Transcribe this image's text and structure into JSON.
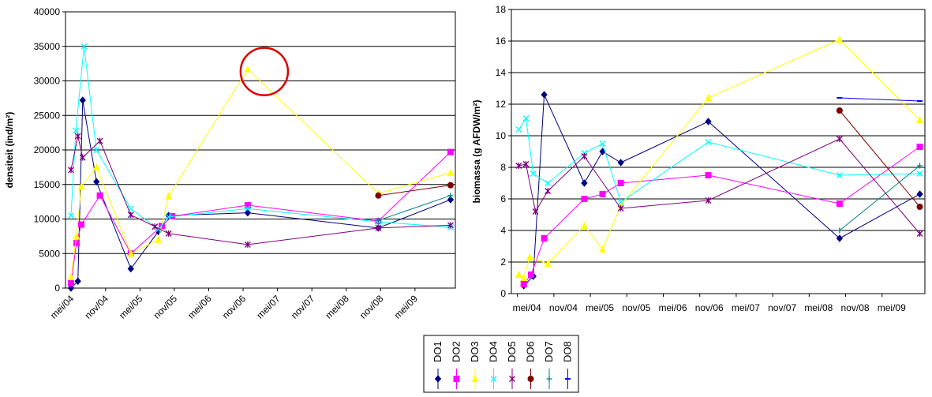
{
  "colors": {
    "DO1": "#000080",
    "DO2": "#FF00FF",
    "DO3": "#FFFF00",
    "DO4": "#00FFFF",
    "DO5": "#800080",
    "DO6": "#800000",
    "DO7": "#008080",
    "DO8": "#0000FF",
    "highlight": "#DD0000",
    "grid": "#000000"
  },
  "legend": [
    "DO1",
    "DO2",
    "DO3",
    "DO4",
    "DO5",
    "DO6",
    "DO7",
    "DO8"
  ],
  "chart_data": [
    {
      "type": "line",
      "ylabel": "densiteit (ind/m²)",
      "xlabel": "",
      "ylim": [
        0,
        40000
      ],
      "yticks": [
        "0",
        "5000",
        "10000",
        "15000",
        "20000",
        "25000",
        "30000",
        "35000",
        "40000"
      ],
      "xticks": [
        "mei/04",
        "nov/04",
        "mei/05",
        "nov/05",
        "mei/06",
        "nov/06",
        "mei/07",
        "nov/07",
        "mei/08",
        "nov/08",
        "mei/09"
      ],
      "xlim": [
        2004.25,
        2009.92
      ],
      "grid": "horizontal",
      "annotation": "red circle around DO3 peak at nov/06",
      "series": [
        {
          "name": "DO1",
          "marker": "diamond",
          "points": [
            [
              2004.33,
              0
            ],
            [
              2004.43,
              1000
            ],
            [
              2004.5,
              27200
            ],
            [
              2004.7,
              15400
            ],
            [
              2005.2,
              2800
            ],
            [
              2005.6,
              8200
            ],
            [
              2005.75,
              10500
            ],
            [
              2006.9,
              10900
            ],
            [
              2008.8,
              8700
            ],
            [
              2009.85,
              12800
            ]
          ]
        },
        {
          "name": "DO2",
          "marker": "square",
          "points": [
            [
              2004.33,
              700
            ],
            [
              2004.41,
              6500
            ],
            [
              2004.48,
              9200
            ],
            [
              2004.75,
              13400
            ],
            [
              2005.2,
              5000
            ],
            [
              2005.65,
              9000
            ],
            [
              2005.8,
              10400
            ],
            [
              2006.9,
              12000
            ],
            [
              2008.8,
              9700
            ],
            [
              2009.85,
              19700
            ]
          ]
        },
        {
          "name": "DO3",
          "marker": "triangle",
          "points": [
            [
              2004.33,
              1600
            ],
            [
              2004.41,
              7500
            ],
            [
              2004.48,
              14700
            ],
            [
              2004.7,
              17500
            ],
            [
              2005.2,
              5000
            ],
            [
              2005.6,
              7000
            ],
            [
              2005.75,
              13300
            ],
            [
              2006.9,
              31700
            ],
            [
              2008.8,
              13700
            ],
            [
              2009.85,
              16700
            ]
          ]
        },
        {
          "name": "DO4",
          "marker": "x",
          "points": [
            [
              2004.33,
              10500
            ],
            [
              2004.4,
              22800
            ],
            [
              2004.52,
              35000
            ],
            [
              2004.7,
              20000
            ],
            [
              2005.2,
              11500
            ],
            [
              2005.6,
              8500
            ],
            [
              2005.75,
              10300
            ],
            [
              2006.9,
              11500
            ],
            [
              2008.8,
              9600
            ],
            [
              2009.85,
              8800
            ]
          ]
        },
        {
          "name": "DO5",
          "marker": "asterisk",
          "points": [
            [
              2004.33,
              17100
            ],
            [
              2004.43,
              22000
            ],
            [
              2004.5,
              18900
            ],
            [
              2004.75,
              21300
            ],
            [
              2005.2,
              10600
            ],
            [
              2005.55,
              8900
            ],
            [
              2005.75,
              7900
            ],
            [
              2006.9,
              6300
            ],
            [
              2008.8,
              8700
            ],
            [
              2009.85,
              9100
            ]
          ]
        },
        {
          "name": "DO6",
          "marker": "circle",
          "points": [
            [
              2008.8,
              13400
            ],
            [
              2009.85,
              14900
            ]
          ]
        },
        {
          "name": "DO7",
          "marker": "plus",
          "points": [
            [
              2008.8,
              9800
            ],
            [
              2009.85,
              13400
            ]
          ]
        }
      ]
    },
    {
      "type": "line",
      "ylabel": "biomassa (g AFDW/m²)",
      "xlabel": "",
      "ylim": [
        0,
        18
      ],
      "yticks": [
        "0",
        "2",
        "4",
        "6",
        "8",
        "10",
        "12",
        "14",
        "16",
        "18"
      ],
      "xticks": [
        "mei/04",
        "nov/04",
        "mei/05",
        "nov/05",
        "mei/06",
        "nov/06",
        "mei/07",
        "nov/07",
        "mei/08",
        "nov/08",
        "mei/09"
      ],
      "xlim": [
        2004.25,
        2009.92
      ],
      "grid": "horizontal",
      "series": [
        {
          "name": "DO1",
          "marker": "diamond",
          "points": [
            [
              2004.42,
              0.5
            ],
            [
              2004.55,
              1.1
            ],
            [
              2004.7,
              12.6
            ],
            [
              2005.25,
              7.0
            ],
            [
              2005.5,
              9.0
            ],
            [
              2005.75,
              8.3
            ],
            [
              2006.95,
              10.9
            ],
            [
              2008.75,
              3.5
            ],
            [
              2009.85,
              6.3
            ]
          ]
        },
        {
          "name": "DO2",
          "marker": "square",
          "points": [
            [
              2004.42,
              0.6
            ],
            [
              2004.52,
              1.2
            ],
            [
              2004.7,
              3.5
            ],
            [
              2005.25,
              6.0
            ],
            [
              2005.5,
              6.3
            ],
            [
              2005.75,
              7.0
            ],
            [
              2006.95,
              7.5
            ],
            [
              2008.75,
              5.7
            ],
            [
              2009.85,
              9.3
            ]
          ]
        },
        {
          "name": "DO3",
          "marker": "triangle",
          "points": [
            [
              2004.35,
              1.2
            ],
            [
              2004.42,
              1.0
            ],
            [
              2004.5,
              2.3
            ],
            [
              2004.75,
              1.9
            ],
            [
              2005.25,
              4.3
            ],
            [
              2005.5,
              2.8
            ],
            [
              2005.75,
              5.6
            ],
            [
              2006.95,
              12.4
            ],
            [
              2008.75,
              16.1
            ],
            [
              2009.85,
              11.0
            ]
          ]
        },
        {
          "name": "DO4",
          "marker": "x",
          "points": [
            [
              2004.35,
              10.4
            ],
            [
              2004.45,
              11.1
            ],
            [
              2004.55,
              7.6
            ],
            [
              2004.75,
              7.0
            ],
            [
              2005.25,
              8.9
            ],
            [
              2005.5,
              9.5
            ],
            [
              2005.75,
              5.8
            ],
            [
              2006.95,
              9.6
            ],
            [
              2008.75,
              7.5
            ],
            [
              2009.85,
              7.6
            ]
          ]
        },
        {
          "name": "DO5",
          "marker": "asterisk",
          "points": [
            [
              2004.35,
              8.1
            ],
            [
              2004.45,
              8.2
            ],
            [
              2004.58,
              5.2
            ],
            [
              2004.75,
              6.5
            ],
            [
              2005.25,
              8.7
            ],
            [
              2005.75,
              5.4
            ],
            [
              2006.95,
              5.9
            ],
            [
              2008.75,
              9.8
            ],
            [
              2009.85,
              3.8
            ]
          ]
        },
        {
          "name": "DO6",
          "marker": "circle",
          "points": [
            [
              2008.75,
              11.6
            ],
            [
              2009.85,
              5.5
            ]
          ]
        },
        {
          "name": "DO7",
          "marker": "plus",
          "points": [
            [
              2008.75,
              4.0
            ],
            [
              2009.85,
              8.1
            ]
          ]
        },
        {
          "name": "DO8",
          "marker": "dash",
          "points": [
            [
              2008.75,
              12.4
            ],
            [
              2009.85,
              12.2
            ]
          ]
        }
      ]
    }
  ]
}
